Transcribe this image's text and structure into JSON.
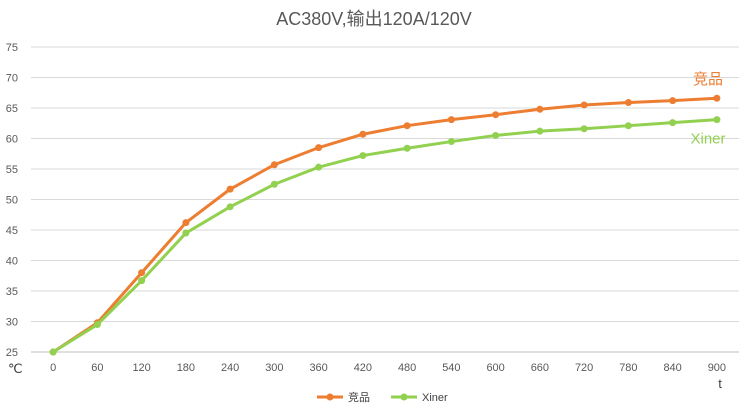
{
  "chart_data": {
    "type": "line",
    "title": "AC380V,输出120A/120V",
    "xlabel": "t",
    "ylabel": "℃",
    "x": [
      0,
      60,
      120,
      180,
      240,
      300,
      360,
      420,
      480,
      540,
      600,
      660,
      720,
      780,
      840,
      900
    ],
    "ylim": [
      25,
      75
    ],
    "yticks": [
      25,
      30,
      35,
      40,
      45,
      50,
      55,
      60,
      65,
      70,
      75
    ],
    "grid": true,
    "legend": "bottom",
    "series": [
      {
        "name": "竞品",
        "color": "#ED7D31",
        "values": [
          25,
          29.8,
          38,
          46.2,
          51.7,
          55.7,
          58.5,
          60.7,
          62.1,
          63.1,
          63.9,
          64.8,
          65.5,
          65.9,
          66.2,
          66.6
        ]
      },
      {
        "name": "Xiner",
        "color": "#92D050",
        "values": [
          25,
          29.5,
          36.7,
          44.5,
          48.8,
          52.5,
          55.3,
          57.2,
          58.4,
          59.5,
          60.5,
          61.2,
          61.6,
          62.1,
          62.6,
          63.1
        ]
      }
    ]
  }
}
